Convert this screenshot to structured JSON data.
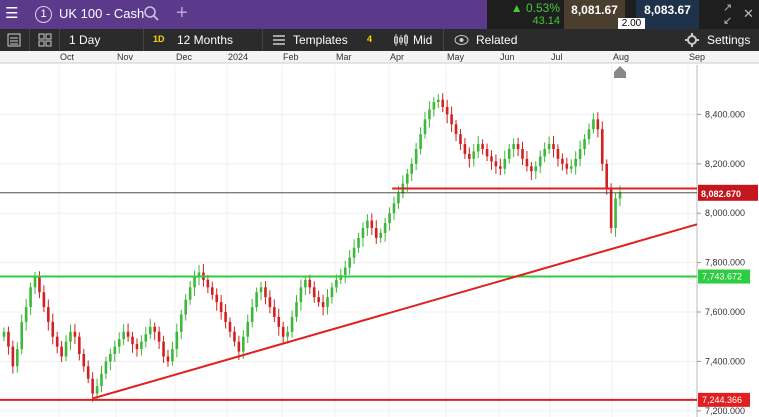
{
  "topbar": {
    "menu_icon": "hamburger-menu-icon",
    "workspace_number": "1",
    "instrument": "UK 100 - Cash",
    "search_icon": "search-icon",
    "add_tab": "+",
    "change_pct": "▲ 0.53%",
    "change_abs": "43.14",
    "bid": "8,081.67",
    "ask": "8,083.67",
    "spread": "2.00"
  },
  "toolbar": {
    "interval": "1 Day",
    "period_badge": "1D",
    "period": "12 Months",
    "templates": "Templates",
    "templates_count": "4",
    "price_type": "Mid",
    "related": "Related",
    "settings": "Settings"
  },
  "colors": {
    "brand_purple": "#5b3a8c",
    "up_green": "#46c83a",
    "candle_green": "#3db83a",
    "candle_red": "#d42020",
    "support_green": "#2ecc40",
    "trend_red": "#e02020"
  },
  "chart_data": {
    "type": "candlestick",
    "x_labels": [
      "Oct",
      "Nov",
      "Dec",
      "2024",
      "Feb",
      "Mar",
      "Apr",
      "May",
      "Jun",
      "Jul",
      "Aug",
      "Sep"
    ],
    "y_ticks": [
      "8,400.000",
      "8,200.000",
      "8,000.000",
      "7,800.000",
      "7,600.000",
      "7,400.000",
      "7,200.000"
    ],
    "y_values": [
      8400,
      8200,
      8000,
      7800,
      7600,
      7400,
      7200
    ],
    "ylim": [
      7175,
      8600
    ],
    "price_label": "8,082.670",
    "price_line": 8082.67,
    "hline_green_label": "7,743.672",
    "hline_green": 7743.672,
    "hline_red_label": "7,244.366",
    "hline_red": 7244.366,
    "hline_resistance": 8100,
    "closes": [
      7520,
      7460,
      7380,
      7450,
      7560,
      7620,
      7700,
      7740,
      7680,
      7620,
      7560,
      7500,
      7460,
      7420,
      7480,
      7520,
      7500,
      7430,
      7380,
      7330,
      7270,
      7300,
      7350,
      7400,
      7430,
      7460,
      7490,
      7520,
      7500,
      7470,
      7450,
      7480,
      7510,
      7540,
      7520,
      7480,
      7420,
      7400,
      7450,
      7520,
      7590,
      7650,
      7700,
      7740,
      7760,
      7730,
      7700,
      7670,
      7640,
      7600,
      7560,
      7520,
      7480,
      7440,
      7500,
      7560,
      7620,
      7680,
      7700,
      7660,
      7620,
      7580,
      7540,
      7500,
      7520,
      7580,
      7640,
      7700,
      7730,
      7700,
      7660,
      7640,
      7620,
      7660,
      7700,
      7730,
      7750,
      7780,
      7820,
      7860,
      7900,
      7940,
      7970,
      7940,
      7900,
      7920,
      7960,
      8000,
      8040,
      8080,
      8120,
      8160,
      8200,
      8260,
      8320,
      8380,
      8420,
      8450,
      8460,
      8430,
      8400,
      8360,
      8320,
      8280,
      8240,
      8220,
      8250,
      8280,
      8260,
      8230,
      8210,
      8190,
      8180,
      8220,
      8260,
      8280,
      8260,
      8220,
      8190,
      8170,
      8190,
      8230,
      8260,
      8280,
      8260,
      8220,
      8200,
      8180,
      8190,
      8220,
      8260,
      8300,
      8340,
      8380,
      8340,
      8200,
      8100,
      7940,
      8060,
      8085
    ],
    "trendline_start": {
      "i": 20,
      "value": 7250
    },
    "trendline_end": {
      "i": 160,
      "value": 7955
    }
  }
}
